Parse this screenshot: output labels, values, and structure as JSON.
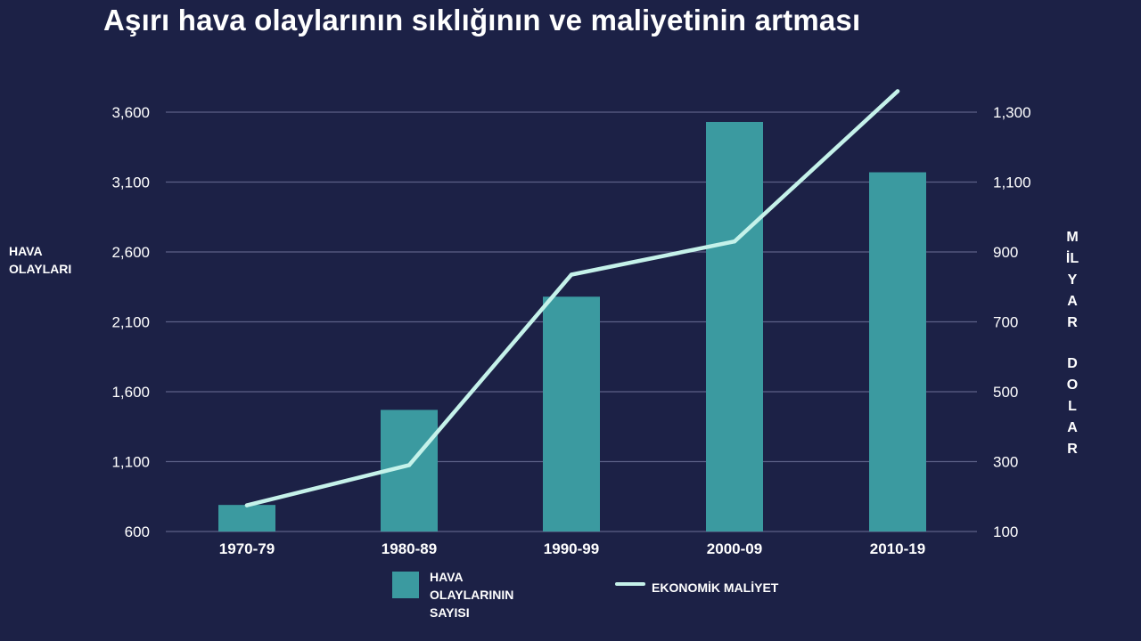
{
  "title": "Aşırı hava olaylarının sıklığının ve maliyetinin artması",
  "colors": {
    "background": "#1c2146",
    "bar": "#3b9aa0",
    "line": "#c5f2ea",
    "grid": "#5c6187",
    "text": "#ffffff"
  },
  "left_axis_label": [
    "HAVA",
    "OLAYLARI"
  ],
  "right_axis_label_letters": [
    "M",
    "İL",
    "Y",
    "A",
    "R",
    "",
    "D",
    "O",
    "L",
    "A",
    "R"
  ],
  "legend": {
    "bars": [
      "HAVA",
      "OLAYLARININ",
      "SAYISI"
    ],
    "line": "EKONOMİK MALİYET"
  },
  "chart_data": {
    "type": "bar+line",
    "title": "Aşırı hava olaylarının sıklığının ve maliyetinin artması",
    "categories": [
      "1970-79",
      "1980-89",
      "1990-99",
      "2000-09",
      "2010-19"
    ],
    "left_axis": {
      "label": "HAVA OLAYLARI",
      "ticks": [
        600,
        1100,
        1600,
        2100,
        2600,
        3100,
        3600
      ],
      "tick_labels": [
        "600",
        "1,100",
        "1,600",
        "2,100",
        "2,600",
        "3,100",
        "3,600"
      ],
      "ylim": [
        600,
        3600
      ]
    },
    "right_axis": {
      "label": "MİLYAR DOLAR",
      "ticks": [
        100,
        300,
        500,
        700,
        900,
        1100,
        1300
      ],
      "tick_labels": [
        "100",
        "300",
        "500",
        "700",
        "900",
        "1,100",
        "1,300"
      ],
      "ylim": [
        100,
        1300
      ]
    },
    "series": [
      {
        "name": "HAVA OLAYLARININ SAYISI",
        "type": "bar",
        "axis": "left",
        "values": [
          790,
          1470,
          2280,
          3530,
          3170
        ]
      },
      {
        "name": "EKONOMİK MALİYET",
        "type": "line",
        "axis": "right",
        "values": [
          175,
          290,
          835,
          930,
          1360
        ]
      }
    ],
    "grid": true,
    "legend_position": "bottom"
  }
}
